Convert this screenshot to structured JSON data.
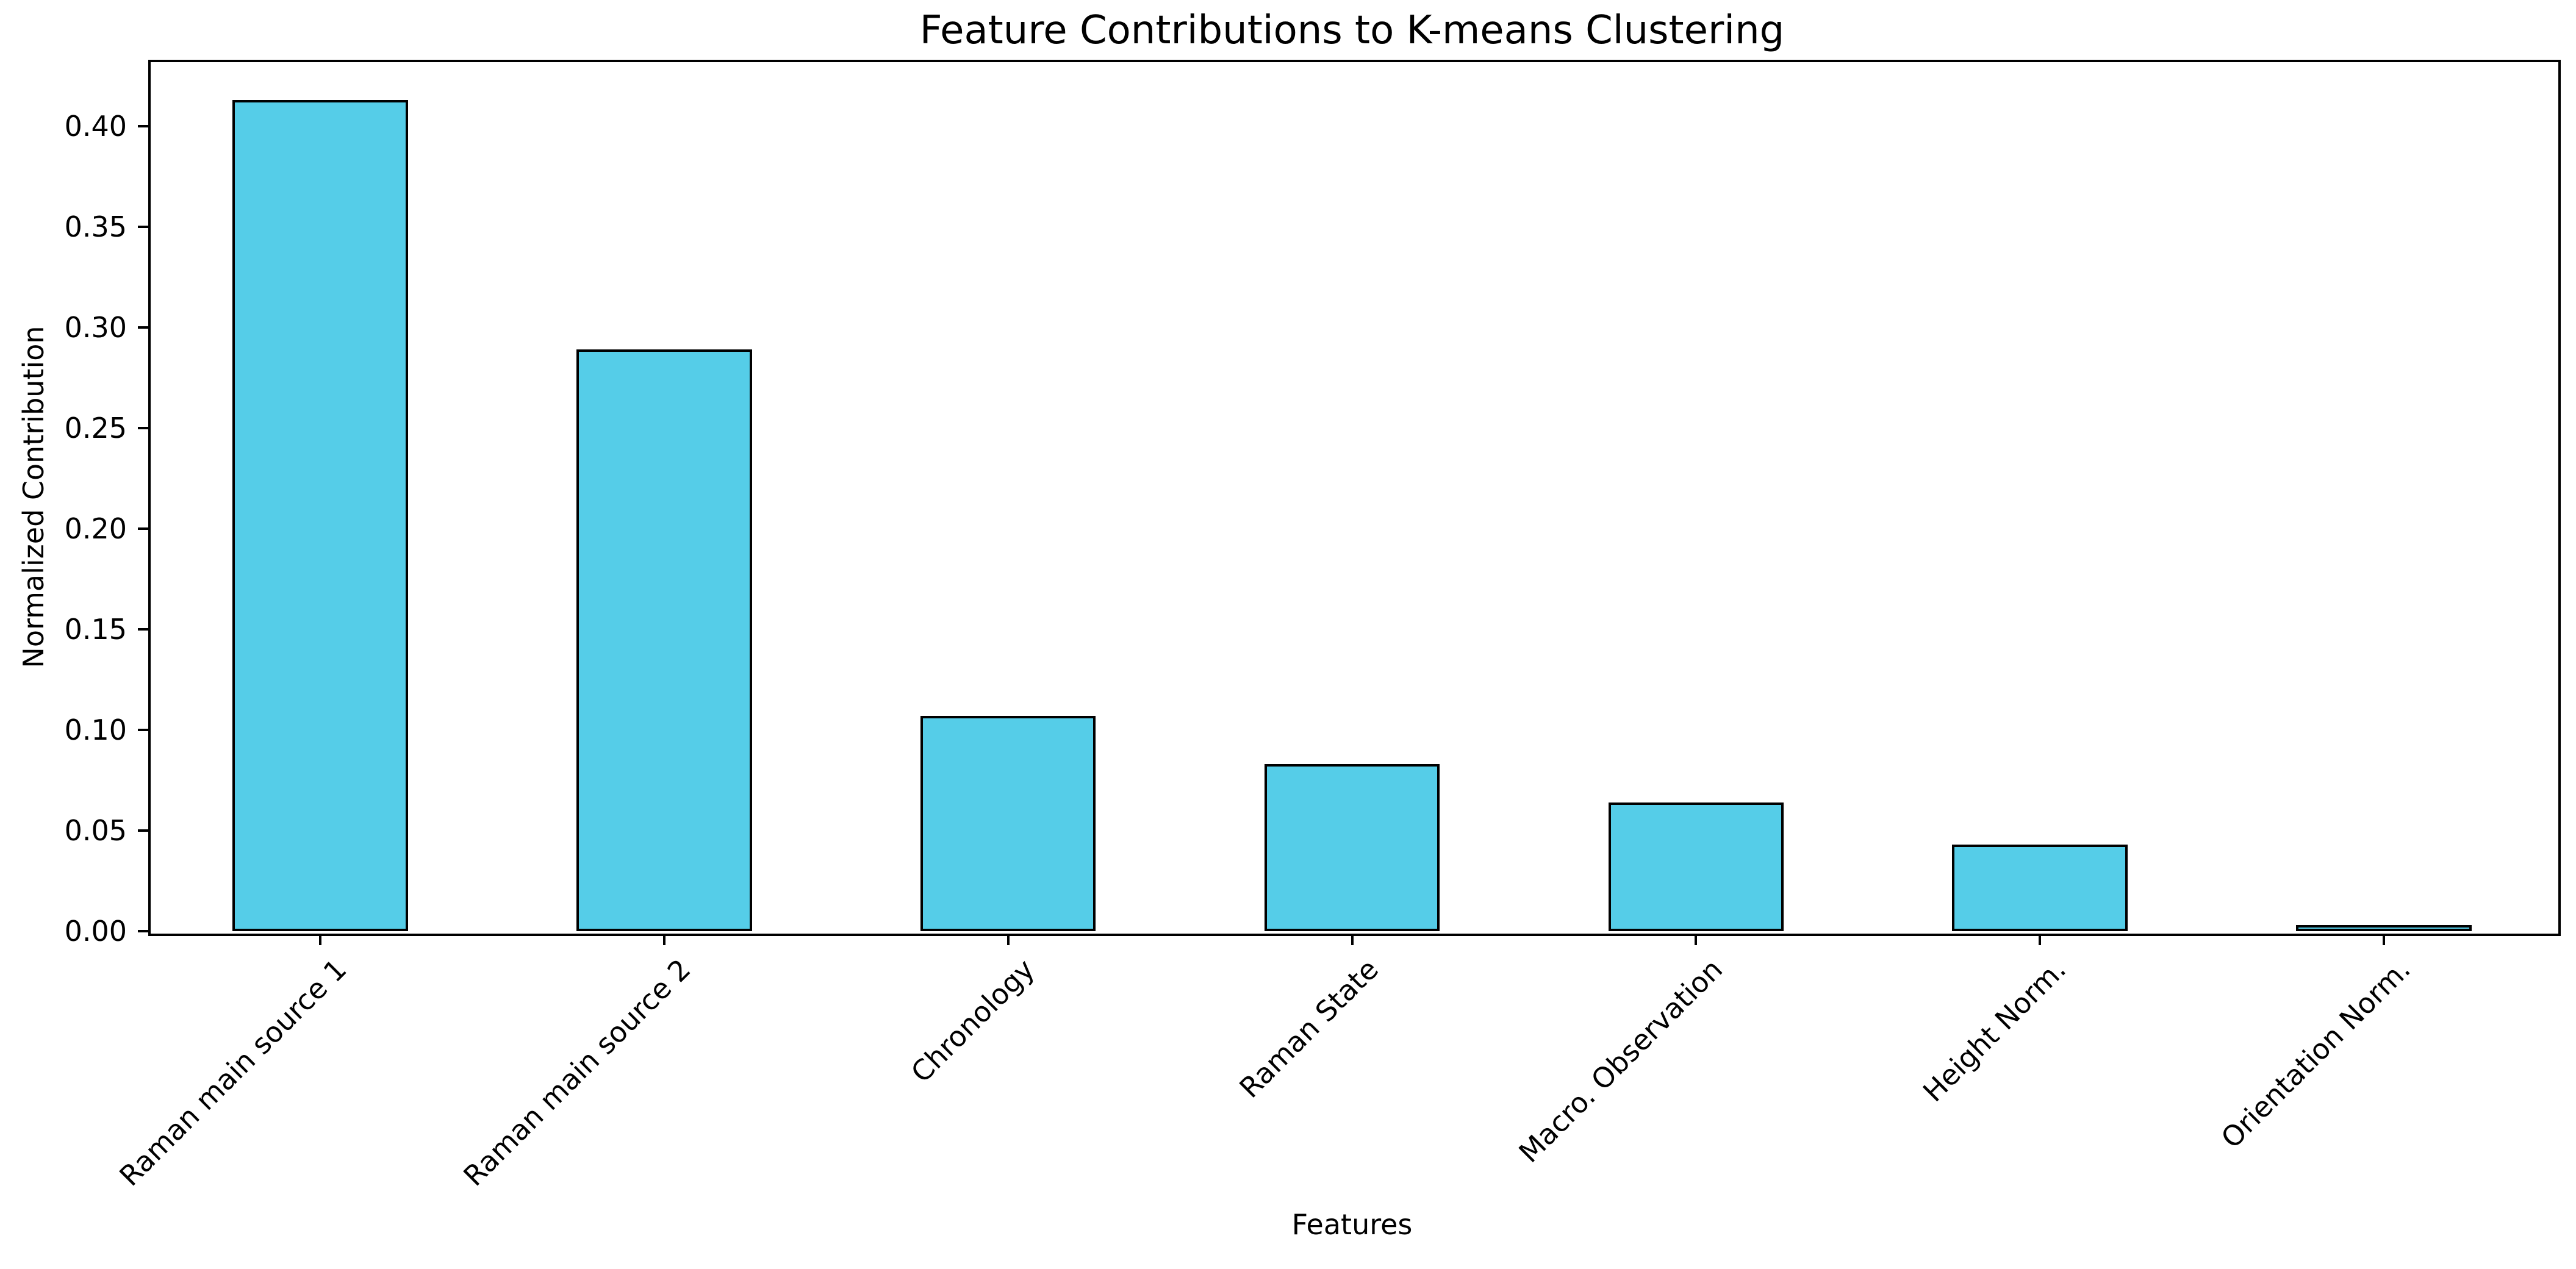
{
  "chart_data": {
    "type": "bar",
    "title": "Feature Contributions to K-means Clustering",
    "xlabel": "Features",
    "ylabel": "Normalized Contribution",
    "categories": [
      "Raman main source 1",
      "Raman main source 2",
      "Chronology",
      "Raman State",
      "Macro. Observation",
      "Height Norm.",
      "Orientation Norm."
    ],
    "values": [
      0.413,
      0.289,
      0.107,
      0.083,
      0.064,
      0.043,
      0.003
    ],
    "ylim": [
      0,
      0.433
    ],
    "yticks": [
      0.0,
      0.05,
      0.1,
      0.15,
      0.2,
      0.25,
      0.3,
      0.35,
      0.4
    ],
    "ytick_labels": [
      "0.00",
      "0.05",
      "0.10",
      "0.15",
      "0.20",
      "0.25",
      "0.30",
      "0.35",
      "0.40"
    ],
    "xtick_rotation_deg": 45,
    "bar_color": "#55CDE8",
    "bar_edge_color": "#000000",
    "bar_width_fraction": 0.51,
    "grid": false,
    "legend_position": "none"
  }
}
